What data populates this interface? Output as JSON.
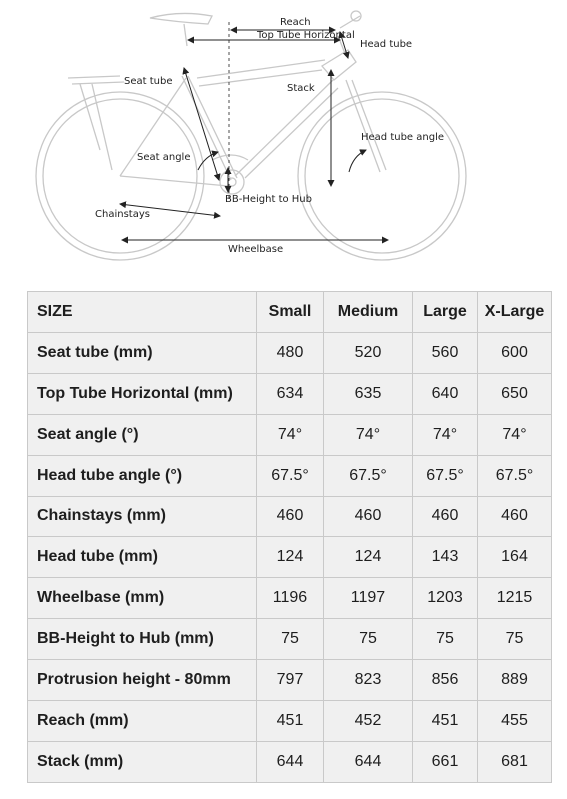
{
  "diagram": {
    "labels": {
      "reach": "Reach",
      "top_tube_horizontal": "Top Tube Horizontal",
      "head_tube": "Head tube",
      "seat_tube": "Seat tube",
      "stack": "Stack",
      "head_tube_angle": "Head tube angle",
      "seat_angle": "Seat angle",
      "bb_height_to_hub": "BB-Height to Hub",
      "chainstays": "Chainstays",
      "wheelbase": "Wheelbase"
    }
  },
  "table": {
    "header": [
      "SIZE",
      "Small",
      "Medium",
      "Large",
      "X-Large"
    ],
    "rows": [
      {
        "label": "Seat tube (mm)",
        "values": [
          "480",
          "520",
          "560",
          "600"
        ]
      },
      {
        "label": "Top Tube Horizontal (mm)",
        "values": [
          "634",
          "635",
          "640",
          "650"
        ]
      },
      {
        "label": "Seat angle (°)",
        "values": [
          "74°",
          "74°",
          "74°",
          "74°"
        ]
      },
      {
        "label": "Head tube angle (°)",
        "values": [
          "67.5°",
          "67.5°",
          "67.5°",
          "67.5°"
        ]
      },
      {
        "label": "Chainstays (mm)",
        "values": [
          "460",
          "460",
          "460",
          "460"
        ]
      },
      {
        "label": "Head tube (mm)",
        "values": [
          "124",
          "124",
          "143",
          "164"
        ]
      },
      {
        "label": "Wheelbase (mm)",
        "values": [
          "1196",
          "1197",
          "1203",
          "1215"
        ]
      },
      {
        "label": "BB-Height to Hub (mm)",
        "values": [
          "75",
          "75",
          "75",
          "75"
        ]
      },
      {
        "label": "Protrusion height - 80mm",
        "values": [
          "797",
          "823",
          "856",
          "889"
        ]
      },
      {
        "label": "Reach (mm)",
        "values": [
          "451",
          "452",
          "451",
          "455"
        ]
      },
      {
        "label": "Stack (mm)",
        "values": [
          "644",
          "644",
          "661",
          "681"
        ]
      }
    ]
  }
}
